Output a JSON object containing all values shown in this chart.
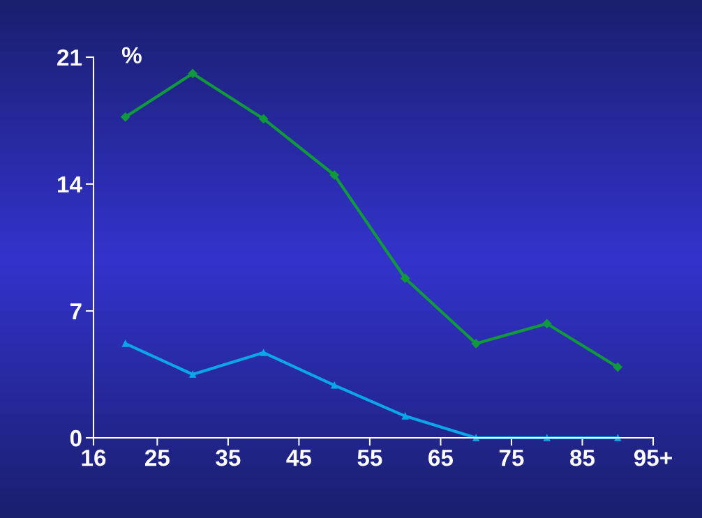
{
  "chart_data": {
    "type": "line",
    "ylabel": "%",
    "x": [
      20.5,
      30,
      40,
      50,
      60,
      70,
      80,
      90
    ],
    "series": [
      {
        "color": "#109a3c",
        "marker": "diamond",
        "values": [
          17.7,
          20.1,
          17.6,
          14.5,
          8.8,
          5.2,
          6.3,
          3.9
        ]
      },
      {
        "color": "#0aa6e8",
        "marker": "triangle",
        "values": [
          5.2,
          3.5,
          4.7,
          2.9,
          1.2,
          0,
          0,
          0
        ]
      }
    ],
    "xlim": [
      16,
      95
    ],
    "xticks": [
      16,
      25,
      35,
      45,
      55,
      65,
      75,
      85,
      {
        "value": 95,
        "label": "95+"
      }
    ],
    "ylim": [
      0,
      21
    ],
    "yticks": [
      0,
      7,
      14,
      21
    ],
    "grid": false,
    "legend": false
  }
}
